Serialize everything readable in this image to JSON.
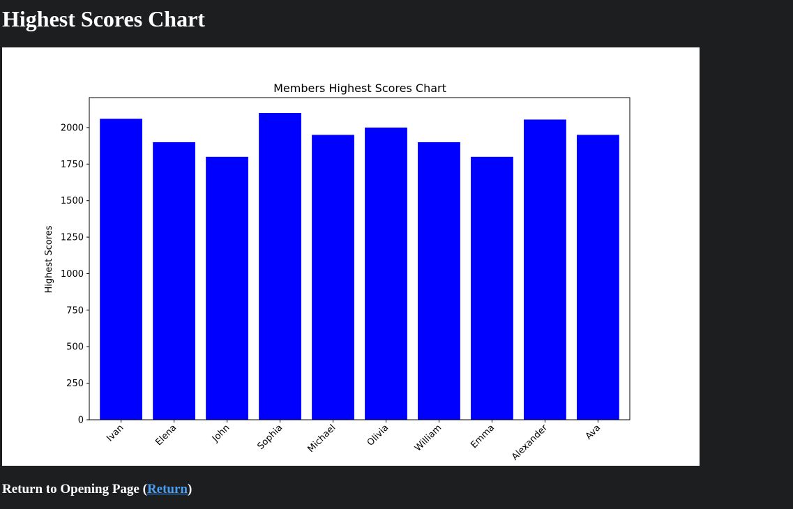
{
  "page": {
    "title": "Highest Scores Chart"
  },
  "footer": {
    "prefix": "Return to Opening Page (",
    "link_label": "Return",
    "suffix": ")",
    "link_color": "#4a9ff5"
  },
  "colors": {
    "background": "#1d1e20",
    "bar": "#0000ff"
  },
  "chart_data": {
    "type": "bar",
    "title": "Members Highest Scores Chart",
    "xlabel": "",
    "ylabel": "Highest Scores",
    "categories": [
      "Ivan",
      "Elena",
      "John",
      "Sophia",
      "Michael",
      "Olivia",
      "William",
      "Emma",
      "Alexander",
      "Ava"
    ],
    "values": [
      2060,
      1900,
      1800,
      2100,
      1950,
      2000,
      1900,
      1800,
      2055,
      1950
    ],
    "ylim": [
      0,
      2205
    ],
    "yticks": [
      0,
      250,
      500,
      750,
      1000,
      1250,
      1500,
      1750,
      2000
    ],
    "grid": false,
    "bar_color": "#0000ff",
    "xtick_rotation": 45
  }
}
